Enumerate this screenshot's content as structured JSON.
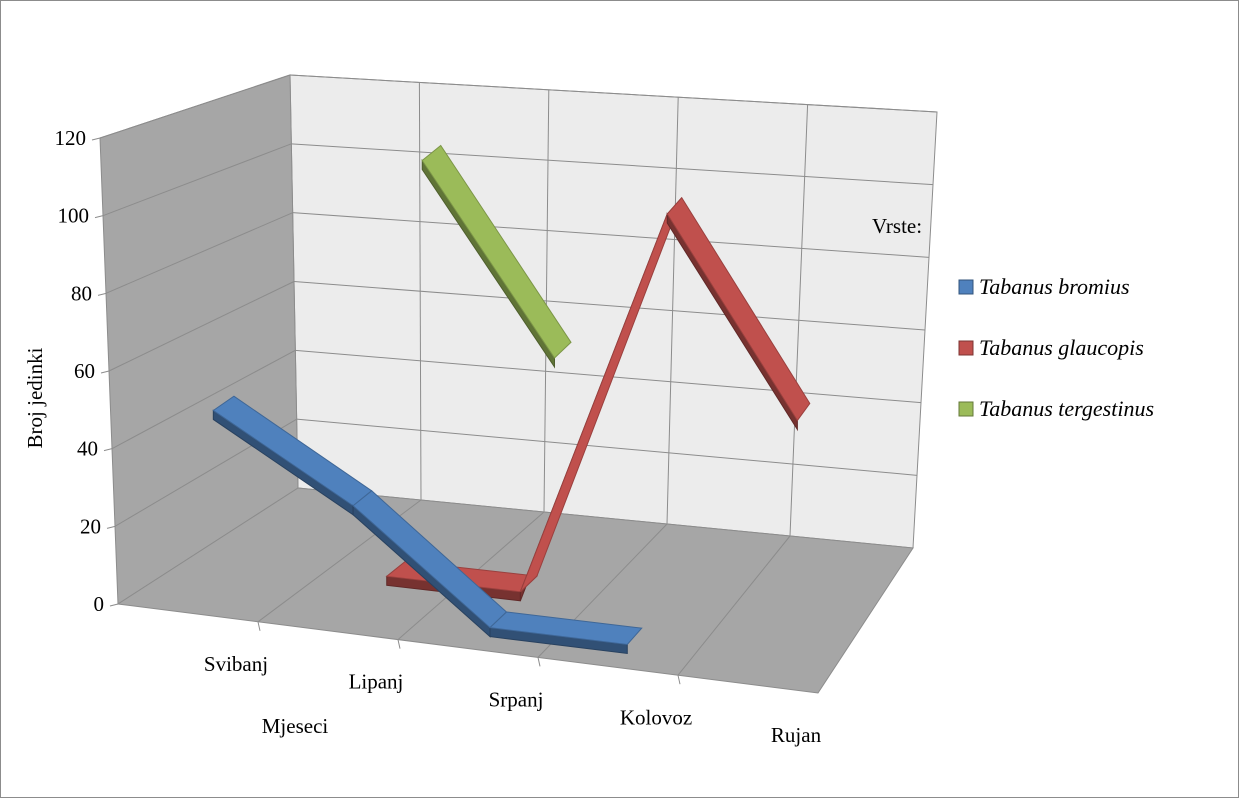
{
  "chart_data": {
    "type": "line",
    "style": "3d-ribbon",
    "title": "",
    "xlabel": "Mjeseci",
    "ylabel": "Broj jedinki",
    "ylim": [
      0,
      120
    ],
    "yticks": [
      0,
      20,
      40,
      60,
      80,
      100,
      120
    ],
    "grid": true,
    "legend_title": "Vrste:",
    "legend_position": "right",
    "categories": [
      "Svibanj",
      "Lipanj",
      "Srpanj",
      "Kolovoz",
      "Rujan"
    ],
    "series": [
      {
        "name": "Tabanus bromius",
        "values": [
          53,
          30,
          0,
          0,
          null
        ],
        "color": "#4f81bd"
      },
      {
        "name": "Tabanus glaucopis",
        "values": [
          null,
          2,
          2,
          112,
          58
        ],
        "color": "#c0504d"
      },
      {
        "name": "Tabanus tergestinus",
        "values": [
          null,
          113,
          60,
          null,
          null
        ],
        "color": "#9bbb59"
      }
    ]
  }
}
